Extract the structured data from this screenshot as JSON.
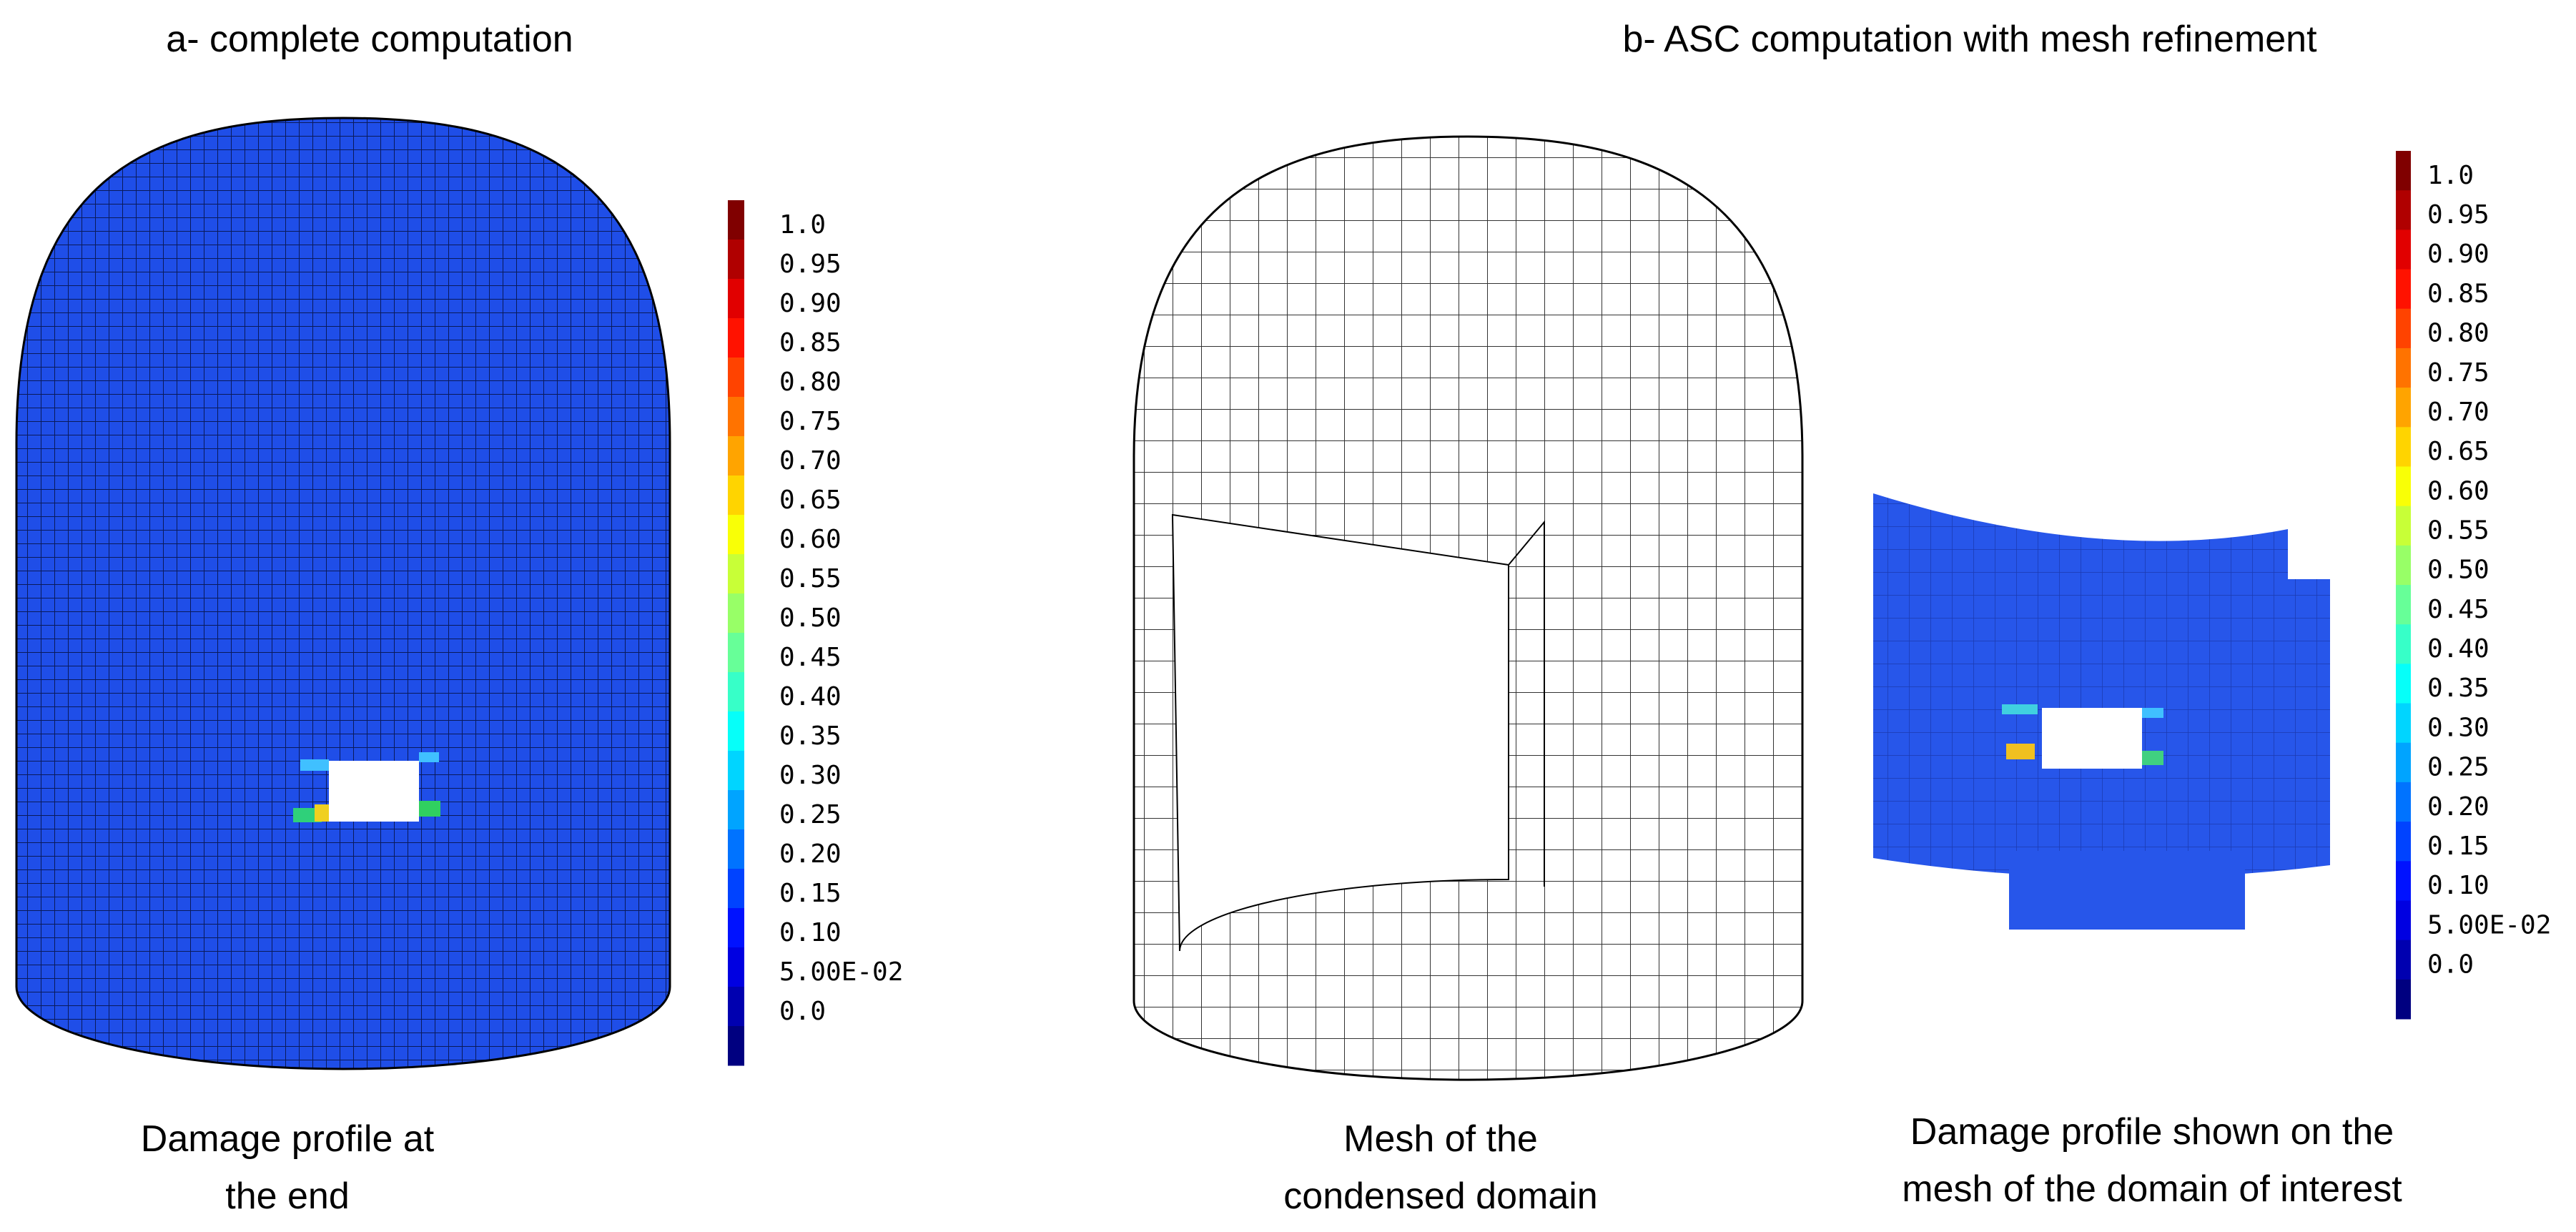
{
  "panels": [
    {
      "title": "a- complete computation",
      "colorbar": {
        "labels": [
          "1.0",
          "0.95",
          "0.90",
          "0.85",
          "0.80",
          "0.75",
          "0.70",
          "0.65",
          "0.60",
          "0.55",
          "0.50",
          "0.45",
          "0.40",
          "0.35",
          "0.30",
          "0.25",
          "0.20",
          "0.15",
          "0.10",
          "5.00E-02",
          "0.0"
        ]
      },
      "captions": [
        {
          "lines": [
            "Damage profile at",
            "the end"
          ]
        }
      ]
    },
    {
      "title": "b- ASC computation with mesh refinement",
      "colorbar": {
        "labels": [
          "1.0",
          "0.95",
          "0.90",
          "0.85",
          "0.80",
          "0.75",
          "0.70",
          "0.65",
          "0.60",
          "0.55",
          "0.50",
          "0.45",
          "0.40",
          "0.35",
          "0.30",
          "0.25",
          "0.20",
          "0.15",
          "0.10",
          "5.00E-02",
          "0.0"
        ]
      },
      "captions": [
        {
          "lines": [
            "Mesh of the",
            "condensed domain"
          ]
        },
        {
          "lines": [
            "Damage profile shown on the",
            "mesh of the domain of interest"
          ]
        }
      ]
    }
  ]
}
